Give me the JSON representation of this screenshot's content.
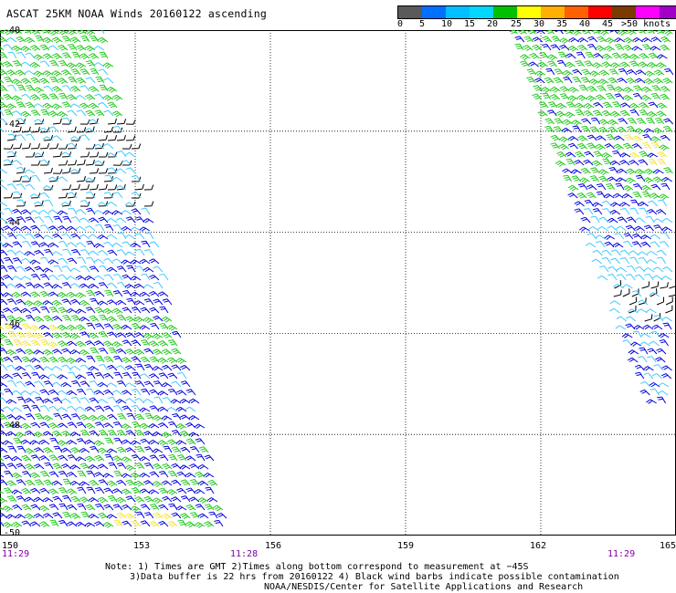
{
  "header": {
    "title": "ASCAT 25KM NOAA Winds 20160122 ascending"
  },
  "legend": {
    "labels": [
      "0",
      "5",
      "10",
      "15",
      "20",
      "25",
      "30",
      "35",
      "40",
      "45",
      ">50 knots"
    ],
    "colors": [
      "#5a5a5a",
      "#0070ff",
      "#00c0ff",
      "#00d8ff",
      "#00c000",
      "#ffff00",
      "#ffb000",
      "#ff6000",
      "#ff0000",
      "#7a3a00",
      "#ff00ff",
      "#a000c8",
      "#400080"
    ]
  },
  "map": {
    "lat_labels": [
      "-40",
      "-42",
      "-44",
      "-46",
      "-48",
      "-50"
    ],
    "lon_labels": [
      "150",
      "153",
      "156",
      "159",
      "162",
      "165"
    ],
    "time_labels": [
      "11:29",
      "11:28",
      "11:29"
    ],
    "lat_range": [
      -50,
      -40
    ],
    "lon_range": [
      150,
      165
    ],
    "barb_colors": {
      "calm": "#000000",
      "light": "#3ec8ff",
      "moderate": "#0000e0",
      "fresh": "#22c81e",
      "strong": "#f2e640"
    }
  },
  "footer": {
    "note_line1": "Note: 1) Times are GMT 2)Times along bottom correspond to measurement at −45S",
    "note_line2": "3)Data buffer is 22 hrs from 20160122 4) Black wind barbs indicate possible contamination",
    "note_line3": "NOAA/NESDIS/Center for Satellite Applications and Research"
  }
}
